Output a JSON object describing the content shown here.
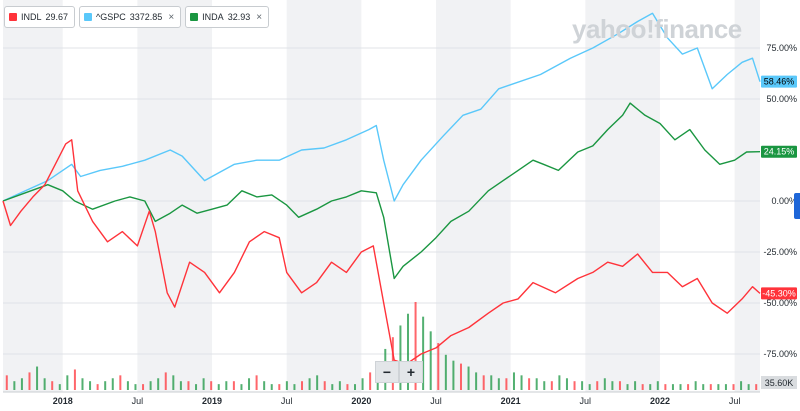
{
  "legend": [
    {
      "symbol": "INDL",
      "value": "29.67",
      "color": "#ff333a",
      "closable": false
    },
    {
      "symbol": "^GSPC",
      "value": "3372.85",
      "color": "#5ac8fa",
      "closable": true
    },
    {
      "symbol": "INDA",
      "value": "32.93",
      "color": "#1a9641",
      "closable": true
    }
  ],
  "watermark": "yahoo!finance",
  "zoom": {
    "minus": "−",
    "plus": "+"
  },
  "close_glyph": "×",
  "chart_data": {
    "type": "line",
    "yunit": "percent change",
    "ylim": [
      -85,
      100
    ],
    "y_ticks": [
      {
        "value": 75,
        "label": "75.00%"
      },
      {
        "value": 50,
        "label": "50.00%"
      },
      {
        "value": 0,
        "label": "0.00%"
      },
      {
        "value": -25,
        "label": "-25.00%"
      },
      {
        "value": -50,
        "label": "-50.00%"
      },
      {
        "value": -75,
        "label": "-75.00%"
      }
    ],
    "xlim": [
      2017.6,
      2022.67
    ],
    "x_ticks": [
      {
        "value": 2018.0,
        "label": "2018",
        "bold": true
      },
      {
        "value": 2018.5,
        "label": "Jul",
        "bold": false
      },
      {
        "value": 2019.0,
        "label": "2019",
        "bold": true
      },
      {
        "value": 2019.5,
        "label": "Jul",
        "bold": false
      },
      {
        "value": 2020.0,
        "label": "2020",
        "bold": true
      },
      {
        "value": 2020.5,
        "label": "Jul",
        "bold": false
      },
      {
        "value": 2021.0,
        "label": "2021",
        "bold": true
      },
      {
        "value": 2021.5,
        "label": "Jul",
        "bold": false
      },
      {
        "value": 2022.0,
        "label": "2022",
        "bold": true
      },
      {
        "value": 2022.5,
        "label": "Jul",
        "bold": false
      }
    ],
    "series": [
      {
        "name": "^GSPC",
        "color": "#5ac8fa",
        "end_label": "58.46%",
        "label_color": "#5ac8fa",
        "label_text_color": "#000000",
        "points": [
          [
            2017.6,
            0
          ],
          [
            2017.75,
            5
          ],
          [
            2017.9,
            10
          ],
          [
            2018.0,
            15
          ],
          [
            2018.06,
            18
          ],
          [
            2018.12,
            12
          ],
          [
            2018.25,
            15
          ],
          [
            2018.4,
            17
          ],
          [
            2018.55,
            20
          ],
          [
            2018.72,
            25
          ],
          [
            2018.8,
            22
          ],
          [
            2018.95,
            10
          ],
          [
            2019.0,
            12
          ],
          [
            2019.15,
            18
          ],
          [
            2019.3,
            20
          ],
          [
            2019.45,
            20
          ],
          [
            2019.6,
            25
          ],
          [
            2019.75,
            26
          ],
          [
            2019.9,
            30
          ],
          [
            2020.05,
            35
          ],
          [
            2020.1,
            37
          ],
          [
            2020.15,
            20
          ],
          [
            2020.22,
            0
          ],
          [
            2020.28,
            8
          ],
          [
            2020.4,
            20
          ],
          [
            2020.55,
            32
          ],
          [
            2020.68,
            42
          ],
          [
            2020.8,
            45
          ],
          [
            2020.92,
            55
          ],
          [
            2021.0,
            57
          ],
          [
            2021.2,
            62
          ],
          [
            2021.4,
            70
          ],
          [
            2021.55,
            75
          ],
          [
            2021.72,
            82
          ],
          [
            2021.85,
            88
          ],
          [
            2021.95,
            92
          ],
          [
            2022.05,
            80
          ],
          [
            2022.15,
            72
          ],
          [
            2022.25,
            75
          ],
          [
            2022.35,
            55
          ],
          [
            2022.45,
            62
          ],
          [
            2022.55,
            68
          ],
          [
            2022.62,
            70
          ],
          [
            2022.67,
            58.5
          ]
        ]
      },
      {
        "name": "INDA",
        "color": "#1a9641",
        "end_label": "24.15%",
        "label_color": "#1a9641",
        "label_text_color": "#ffffff",
        "points": [
          [
            2017.6,
            0
          ],
          [
            2017.75,
            4
          ],
          [
            2017.9,
            8
          ],
          [
            2018.0,
            5
          ],
          [
            2018.08,
            0
          ],
          [
            2018.2,
            -4
          ],
          [
            2018.35,
            0
          ],
          [
            2018.45,
            2
          ],
          [
            2018.55,
            0
          ],
          [
            2018.62,
            -10
          ],
          [
            2018.72,
            -6
          ],
          [
            2018.8,
            -2
          ],
          [
            2018.9,
            -6
          ],
          [
            2019.0,
            -4
          ],
          [
            2019.1,
            -2
          ],
          [
            2019.2,
            5
          ],
          [
            2019.3,
            2
          ],
          [
            2019.4,
            3
          ],
          [
            2019.5,
            -2
          ],
          [
            2019.58,
            -8
          ],
          [
            2019.7,
            -4
          ],
          [
            2019.8,
            0
          ],
          [
            2019.9,
            2
          ],
          [
            2020.0,
            5
          ],
          [
            2020.1,
            4
          ],
          [
            2020.15,
            -8
          ],
          [
            2020.22,
            -38
          ],
          [
            2020.28,
            -32
          ],
          [
            2020.4,
            -25
          ],
          [
            2020.5,
            -18
          ],
          [
            2020.6,
            -10
          ],
          [
            2020.72,
            -5
          ],
          [
            2020.85,
            5
          ],
          [
            2020.95,
            10
          ],
          [
            2021.05,
            15
          ],
          [
            2021.15,
            20
          ],
          [
            2021.22,
            18
          ],
          [
            2021.32,
            15
          ],
          [
            2021.45,
            24
          ],
          [
            2021.55,
            27
          ],
          [
            2021.65,
            35
          ],
          [
            2021.75,
            42
          ],
          [
            2021.8,
            48
          ],
          [
            2021.9,
            42
          ],
          [
            2022.0,
            38
          ],
          [
            2022.1,
            30
          ],
          [
            2022.2,
            35
          ],
          [
            2022.3,
            25
          ],
          [
            2022.4,
            18
          ],
          [
            2022.5,
            20
          ],
          [
            2022.58,
            24
          ],
          [
            2022.67,
            24.15
          ]
        ]
      },
      {
        "name": "INDL",
        "color": "#ff333a",
        "end_label": "-45.30%",
        "label_color": "#ff333a",
        "label_text_color": "#ffffff",
        "points": [
          [
            2017.6,
            0
          ],
          [
            2017.65,
            -12
          ],
          [
            2017.72,
            -5
          ],
          [
            2017.8,
            2
          ],
          [
            2017.88,
            8
          ],
          [
            2017.95,
            18
          ],
          [
            2018.02,
            28
          ],
          [
            2018.06,
            30
          ],
          [
            2018.1,
            5
          ],
          [
            2018.2,
            -10
          ],
          [
            2018.3,
            -20
          ],
          [
            2018.4,
            -15
          ],
          [
            2018.5,
            -22
          ],
          [
            2018.58,
            -5
          ],
          [
            2018.62,
            -15
          ],
          [
            2018.7,
            -45
          ],
          [
            2018.75,
            -52
          ],
          [
            2018.85,
            -30
          ],
          [
            2018.95,
            -35
          ],
          [
            2019.05,
            -45
          ],
          [
            2019.15,
            -35
          ],
          [
            2019.25,
            -20
          ],
          [
            2019.35,
            -15
          ],
          [
            2019.45,
            -18
          ],
          [
            2019.5,
            -35
          ],
          [
            2019.6,
            -45
          ],
          [
            2019.7,
            -40
          ],
          [
            2019.8,
            -30
          ],
          [
            2019.9,
            -35
          ],
          [
            2020.0,
            -25
          ],
          [
            2020.08,
            -22
          ],
          [
            2020.15,
            -50
          ],
          [
            2020.22,
            -78
          ],
          [
            2020.3,
            -80
          ],
          [
            2020.4,
            -75
          ],
          [
            2020.5,
            -72
          ],
          [
            2020.6,
            -66
          ],
          [
            2020.72,
            -62
          ],
          [
            2020.85,
            -55
          ],
          [
            2020.95,
            -50
          ],
          [
            2021.05,
            -48
          ],
          [
            2021.15,
            -40
          ],
          [
            2021.3,
            -45
          ],
          [
            2021.45,
            -38
          ],
          [
            2021.55,
            -35
          ],
          [
            2021.65,
            -30
          ],
          [
            2021.75,
            -32
          ],
          [
            2021.85,
            -26
          ],
          [
            2021.95,
            -35
          ],
          [
            2022.05,
            -35
          ],
          [
            2022.15,
            -42
          ],
          [
            2022.25,
            -38
          ],
          [
            2022.35,
            -50
          ],
          [
            2022.45,
            -55
          ],
          [
            2022.55,
            -48
          ],
          [
            2022.62,
            -42
          ],
          [
            2022.67,
            -45.3
          ]
        ]
      }
    ],
    "volume_label": "35.60K",
    "volume_bars": [
      5,
      3,
      4,
      6,
      8,
      4,
      3,
      2,
      5,
      7,
      4,
      3,
      2,
      3,
      4,
      5,
      3,
      2,
      2,
      3,
      4,
      6,
      5,
      3,
      3,
      2,
      4,
      3,
      2,
      3,
      3,
      2,
      4,
      5,
      3,
      2,
      2,
      3,
      2,
      3,
      4,
      5,
      3,
      2,
      3,
      2,
      2,
      4,
      6,
      8,
      14,
      18,
      22,
      26,
      30,
      25,
      20,
      16,
      12,
      10,
      9,
      8,
      6,
      5,
      5,
      4,
      4,
      6,
      5,
      4,
      4,
      3,
      3,
      5,
      4,
      3,
      3,
      2,
      3,
      4,
      3,
      3,
      2,
      3,
      2,
      2,
      3,
      2,
      2,
      2,
      2,
      3,
      2,
      2,
      2,
      2,
      2,
      3,
      2,
      2
    ]
  }
}
